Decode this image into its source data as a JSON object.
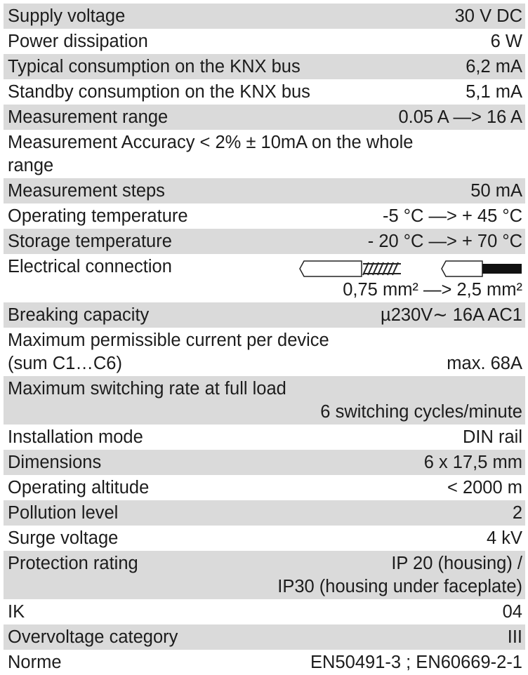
{
  "table": {
    "rows": [
      {
        "lines": [
          {
            "label": "Supply voltage",
            "value": "30 V DC"
          }
        ]
      },
      {
        "lines": [
          {
            "label": "Power dissipation",
            "value": "6 W"
          }
        ]
      },
      {
        "lines": [
          {
            "label": "Typical consumption on the KNX bus",
            "value": "6,2 mA"
          }
        ]
      },
      {
        "lines": [
          {
            "label": "Standby consumption on the KNX bus",
            "value": "5,1 mA"
          }
        ]
      },
      {
        "lines": [
          {
            "label": "Measurement range",
            "value": "0.05 A —> 16 A"
          }
        ]
      },
      {
        "lines": [
          {
            "label": "Measurement Accuracy < 2%  ± 10mA  on the whole"
          },
          {
            "label": "range"
          }
        ]
      },
      {
        "lines": [
          {
            "label": "Measurement steps",
            "value": "50 mA"
          }
        ]
      },
      {
        "lines": [
          {
            "label": "Operating temperature",
            "value": "-5 °C —> + 45 °C"
          }
        ]
      },
      {
        "lines": [
          {
            "label": "Storage temperature",
            "value": "- 20 °C —> + 70 °C"
          }
        ]
      },
      {
        "lines": [
          {
            "label": "Electrical connection"
          },
          {
            "value": "0,75 mm² —> 2,5 mm²"
          }
        ]
      },
      {
        "lines": [
          {
            "label": "Breaking capacity",
            "value": "µ230V∼  16A AC1"
          }
        ]
      },
      {
        "lines": [
          {
            "label": "Maximum permissible current per device"
          },
          {
            "label": "(sum C1…C6)",
            "value": "max. 68A"
          }
        ]
      },
      {
        "lines": [
          {
            "label": "Maximum switching rate at full load"
          },
          {
            "value": "6 switching cycles/minute"
          }
        ]
      },
      {
        "lines": [
          {
            "label": "Installation mode",
            "value": "DIN rail"
          }
        ]
      },
      {
        "lines": [
          {
            "label": "Dimensions",
            "value": "6 x 17,5 mm"
          }
        ]
      },
      {
        "lines": [
          {
            "label": "Operating altitude",
            "value": "< 2000 m"
          }
        ]
      },
      {
        "lines": [
          {
            "label": "Pollution level",
            "value": "2"
          }
        ]
      },
      {
        "lines": [
          {
            "label": "Surge voltage",
            "value": "4 kV"
          }
        ]
      },
      {
        "lines": [
          {
            "label": "Protection rating",
            "value": "IP 20 (housing) /"
          },
          {
            "value": "IP30 (housing under faceplate)"
          }
        ]
      },
      {
        "lines": [
          {
            "label": "IK",
            "value": "04"
          }
        ]
      },
      {
        "lines": [
          {
            "label": "Overvoltage category",
            "value": "III"
          }
        ]
      },
      {
        "lines": [
          {
            "label": "Norme",
            "value": "EN50491-3 ; EN60669-2-1"
          }
        ]
      }
    ]
  }
}
